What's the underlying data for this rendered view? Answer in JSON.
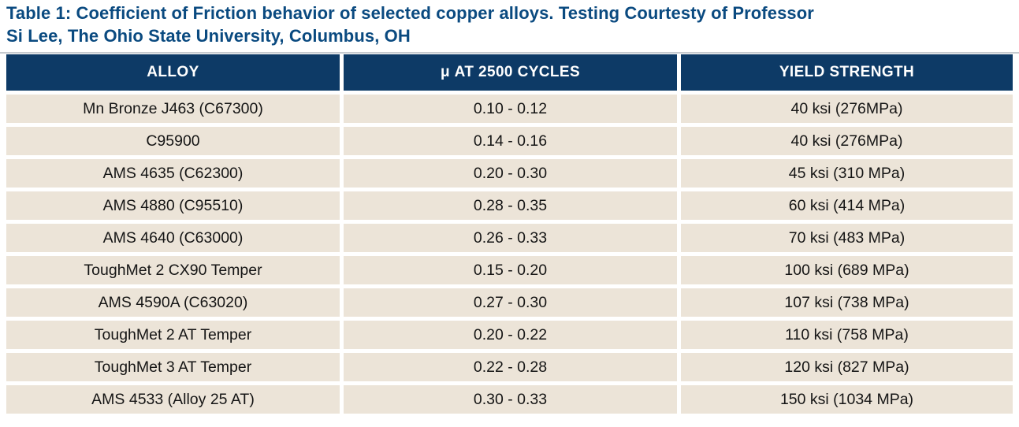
{
  "title": {
    "line1": "Table 1: Coefficient of Friction behavior of selected copper alloys. Testing Courtesty of Professor",
    "line2": "Si Lee, The Ohio State University, Columbus, OH"
  },
  "table": {
    "columns": [
      "ALLOY",
      "μ AT 2500 CYCLES",
      "YIELD STRENGTH"
    ],
    "rows": [
      {
        "alloy": "Mn Bronze J463 (C67300)",
        "mu_2500_cycles": "0.10 - 0.12",
        "yield_strength": "40 ksi (276MPa)"
      },
      {
        "alloy": "C95900",
        "mu_2500_cycles": "0.14 - 0.16",
        "yield_strength": "40 ksi (276MPa)"
      },
      {
        "alloy": "AMS 4635 (C62300)",
        "mu_2500_cycles": "0.20 - 0.30",
        "yield_strength": "45 ksi (310 MPa)"
      },
      {
        "alloy": "AMS 4880 (C95510)",
        "mu_2500_cycles": "0.28 - 0.35",
        "yield_strength": "60 ksi (414 MPa)"
      },
      {
        "alloy": "AMS 4640 (C63000)",
        "mu_2500_cycles": "0.26 - 0.33",
        "yield_strength": "70 ksi (483 MPa)"
      },
      {
        "alloy": "ToughMet 2 CX90 Temper",
        "mu_2500_cycles": "0.15 - 0.20",
        "yield_strength": "100 ksi (689 MPa)"
      },
      {
        "alloy": "AMS 4590A (C63020)",
        "mu_2500_cycles": "0.27 - 0.30",
        "yield_strength": "107 ksi (738 MPa)"
      },
      {
        "alloy": "ToughMet 2 AT Temper",
        "mu_2500_cycles": "0.20 - 0.22",
        "yield_strength": "110 ksi (758 MPa)"
      },
      {
        "alloy": "ToughMet 3 AT Temper",
        "mu_2500_cycles": "0.22 - 0.28",
        "yield_strength": "120 ksi (827 MPa)"
      },
      {
        "alloy": "AMS 4533 (Alloy 25 AT)",
        "mu_2500_cycles": "0.30 - 0.33",
        "yield_strength": "150 ksi (1034 MPa)"
      }
    ]
  },
  "colors": {
    "title_text": "#0a4a80",
    "header_bg": "#0d3a66",
    "header_text": "#ffffff",
    "row_bg": "#ece4d8",
    "body_text": "#151515",
    "top_rule": "#c6cacf",
    "background": "#ffffff"
  }
}
